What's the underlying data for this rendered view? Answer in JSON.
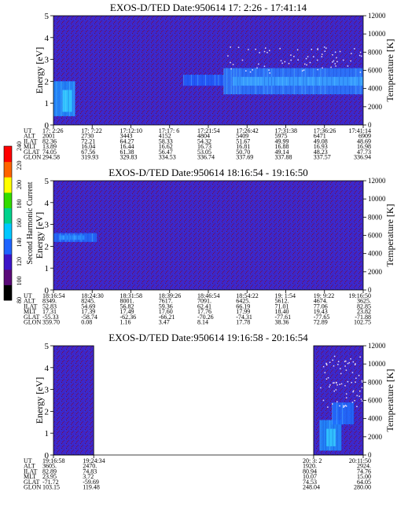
{
  "chart_data": [
    {
      "type": "heatmap",
      "title": "EXOS-D/TED   Date:950614   17: 2:26 - 17:41:14",
      "ylabel": "Energy [eV]",
      "y2label": "Temperature [K]",
      "ylim": [
        0,
        5
      ],
      "y2lim": [
        0,
        12000
      ],
      "yticks": [
        "0",
        "1",
        "2",
        "3",
        "4",
        "5"
      ],
      "y2ticks": [
        "0",
        "2000",
        "4000",
        "6000",
        "8000",
        "10000",
        "12000"
      ],
      "coverage": [
        [
          0,
          1
        ]
      ],
      "features": [
        {
          "kind": "band",
          "x0": 0.0,
          "x1": 0.07,
          "y0": 0.4,
          "y1": 2.0,
          "color": "#1e90ff"
        },
        {
          "kind": "band",
          "x0": 0.03,
          "x1": 0.06,
          "y0": 0.6,
          "y1": 1.6,
          "color": "#33ccff"
        },
        {
          "kind": "band",
          "x0": 0.42,
          "x1": 0.55,
          "y0": 1.8,
          "y1": 2.3,
          "color": "#1e60ff"
        },
        {
          "kind": "band",
          "x0": 0.55,
          "x1": 1.0,
          "y0": 1.4,
          "y1": 2.6,
          "color": "#2a7dff"
        },
        {
          "kind": "band",
          "x0": 0.58,
          "x1": 1.0,
          "y0": 1.8,
          "y1": 2.2,
          "color": "#3aa0ff"
        }
      ],
      "scatter_region": {
        "x0": 0.55,
        "x1": 1.0,
        "y0": 2.4,
        "y1": 3.6
      },
      "ephemeris": {
        "labels": [
          "UT",
          "ALT",
          "ILAT",
          "MLT",
          "GLAT",
          "GLON"
        ],
        "columns": [
          {
            "ut": "17: 2:26",
            "alt": "2001",
            "ilat": "82.36",
            "mlt": "13.89",
            "glat": "74.05",
            "glon": "294.58"
          },
          {
            "ut": "17: 7:22",
            "alt": "2730",
            "ilat": "72.21",
            "mlt": "16.04",
            "glat": "67.56",
            "glon": "319.93"
          },
          {
            "ut": "17:12:10",
            "alt": "3443",
            "ilat": "64.27",
            "mlt": "16.44",
            "glat": "61.38",
            "glon": "329.83"
          },
          {
            "ut": "17:17: 6",
            "alt": "4152",
            "ilat": "58.33",
            "mlt": "16.62",
            "glat": "56.47",
            "glon": "334.53"
          },
          {
            "ut": "17:21:54",
            "alt": "4804",
            "ilat": "54.32",
            "mlt": "16.73",
            "glat": "53.05",
            "glon": "336.74"
          },
          {
            "ut": "17:26:42",
            "alt": "5409",
            "ilat": "51.67",
            "mlt": "16.81",
            "glat": "50.70",
            "glon": "337.69"
          },
          {
            "ut": "17:31:38",
            "alt": "5975",
            "ilat": "49.99",
            "mlt": "16.88",
            "glat": "49.14",
            "glon": "337.88"
          },
          {
            "ut": "17:36:26",
            "alt": "6471",
            "ilat": "49.08",
            "mlt": "16.93",
            "glat": "48.23",
            "glon": "337.57"
          },
          {
            "ut": "17:41:14",
            "alt": "6909",
            "ilat": "48.69",
            "mlt": "16.98",
            "glat": "47.73",
            "glon": "336.94"
          }
        ]
      }
    },
    {
      "type": "heatmap",
      "title": "EXOS-D/TED   Date:950614   18:16:54 - 19:16:50",
      "ylabel": "Energy [eV]",
      "y2label": "Temperature [K]",
      "ylim": [
        0,
        5
      ],
      "y2lim": [
        0,
        12000
      ],
      "yticks": [
        "0",
        "1",
        "2",
        "3",
        "4",
        "5"
      ],
      "y2ticks": [
        "0",
        "2000",
        "4000",
        "6000",
        "8000",
        "10000",
        "12000"
      ],
      "coverage": [
        [
          0,
          1
        ]
      ],
      "features": [
        {
          "kind": "band",
          "x0": 0.0,
          "x1": 0.14,
          "y0": 2.2,
          "y1": 2.6,
          "color": "#1e70ff"
        },
        {
          "kind": "band",
          "x0": 0.02,
          "x1": 0.1,
          "y0": 2.3,
          "y1": 2.5,
          "color": "#2a90ff"
        }
      ],
      "scatter_region": null,
      "colorbar": {
        "label": "Second Harmonic Current",
        "ticks": [
          "80",
          "100",
          "120",
          "140",
          "160",
          "180",
          "200",
          "220",
          "240"
        ],
        "colors": [
          "#000000",
          "#5a0a78",
          "#3c14c8",
          "#1e64ff",
          "#00c8ff",
          "#00d28c",
          "#32dc00",
          "#ffff00",
          "#ff6400",
          "#ff0000"
        ]
      },
      "ephemeris": {
        "labels": [
          "UT",
          "ALT",
          "ILAT",
          "MLT",
          "GLAT",
          "GLON"
        ],
        "columns": [
          {
            "ut": "18:16:54",
            "alt": "8349.",
            "ilat": "52.83",
            "mlt": "17.31",
            "glat": "-55.33",
            "glon": "359.70"
          },
          {
            "ut": "18:24:30",
            "alt": "8245.",
            "ilat": "54.69",
            "mlt": "17.39",
            "glat": "-58.74",
            "glon": "0.08"
          },
          {
            "ut": "18:31:58",
            "alt": "8001.",
            "ilat": "56.82",
            "mlt": "17.49",
            "glat": "-62.36",
            "glon": "1.16"
          },
          {
            "ut": "18:39:26",
            "alt": "7617.",
            "ilat": "59.36",
            "mlt": "17.60",
            "glat": "-66.21",
            "glon": "3.47"
          },
          {
            "ut": "18:46:54",
            "alt": "7091.",
            "ilat": "62.41",
            "mlt": "17.76",
            "glat": "-70.26",
            "glon": "8.14"
          },
          {
            "ut": "18:54:22",
            "alt": "6425.",
            "ilat": "66.19",
            "mlt": "17.99",
            "glat": "-74.31",
            "glon": "17.78"
          },
          {
            "ut": "19: 1:54",
            "alt": "5612.",
            "ilat": "71.01",
            "mlt": "18.40",
            "glat": "-77.61",
            "glon": "38.36"
          },
          {
            "ut": "19: 9:22",
            "alt": "4674.",
            "ilat": "77.06",
            "mlt": "19.43",
            "glat": "-77.65",
            "glon": "72.89"
          },
          {
            "ut": "19:16:50",
            "alt": "3625.",
            "ilat": "82.85",
            "mlt": "23.82",
            "glat": "-71.88",
            "glon": "102.75"
          }
        ]
      }
    },
    {
      "type": "heatmap",
      "title": "EXOS-D/TED   Date:950614   19:16:58 - 20:16:54",
      "ylabel": "Energy [eV]",
      "y2label": "Temperature [K]",
      "ylim": [
        0,
        5
      ],
      "y2lim": [
        0,
        12000
      ],
      "yticks": [
        "0",
        "1",
        "2",
        "3",
        "4",
        "5"
      ],
      "y2ticks": [
        "0",
        "2000",
        "4000",
        "6000",
        "8000",
        "10000",
        "12000"
      ],
      "coverage": [
        [
          0,
          0.13
        ],
        [
          0.84,
          1.0
        ]
      ],
      "features": [
        {
          "kind": "band",
          "x0": 0.86,
          "x1": 0.93,
          "y0": 0.2,
          "y1": 1.6,
          "color": "#1e90ff"
        },
        {
          "kind": "band",
          "x0": 0.88,
          "x1": 0.91,
          "y0": 0.4,
          "y1": 1.2,
          "color": "#33ccff"
        },
        {
          "kind": "band",
          "x0": 0.9,
          "x1": 0.97,
          "y0": 1.4,
          "y1": 2.4,
          "color": "#1e70ff"
        }
      ],
      "scatter_region": {
        "x0": 0.86,
        "x1": 1.0,
        "y0": 2.2,
        "y1": 4.6
      },
      "ephemeris": {
        "labels": [
          "UT",
          "ALT",
          "ILAT",
          "MLT",
          "GLAT",
          "GLON"
        ],
        "columns": [
          {
            "ut": "19:16:58",
            "alt": "3605.",
            "ilat": "82.89",
            "mlt": "23.95",
            "glat": "-71.72",
            "glon": "103.15",
            "pos": 0.0
          },
          {
            "ut": "19:24:34",
            "alt": "2470.",
            "ilat": "74.83",
            "mlt": "3.72",
            "glat": "-59.69",
            "glon": "119.48",
            "pos": 0.13
          },
          {
            "ut": "20: 3: 2",
            "alt": "1920.",
            "ilat": "80.94",
            "mlt": "10.07",
            "glat": "74.53",
            "glon": "248.04",
            "pos": 0.84
          },
          {
            "ut": "20:11:50",
            "alt": "2924.",
            "ilat": "74.76",
            "mlt": "15.00",
            "glat": "64.05",
            "glon": "280.00",
            "pos": 1.0
          }
        ]
      }
    }
  ]
}
